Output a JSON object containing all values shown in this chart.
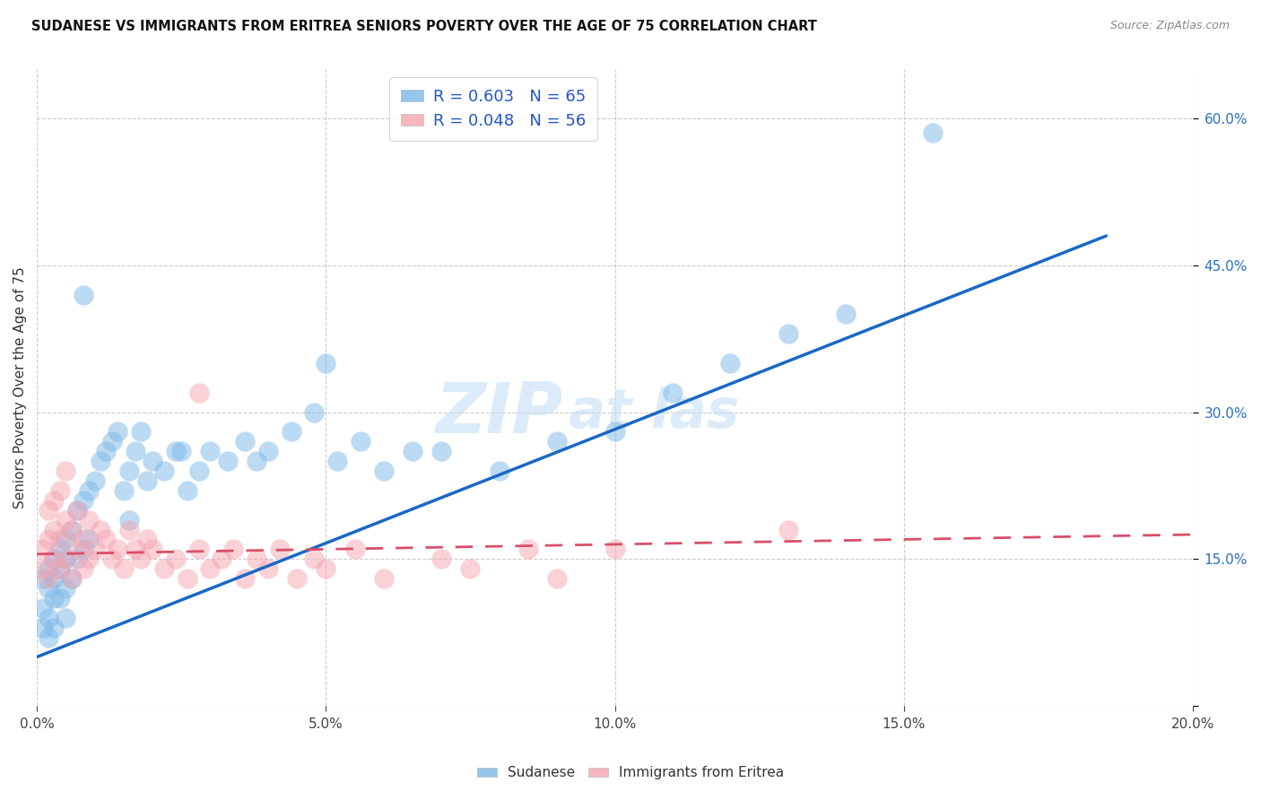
{
  "title": "SUDANESE VS IMMIGRANTS FROM ERITREA SENIORS POVERTY OVER THE AGE OF 75 CORRELATION CHART",
  "source": "Source: ZipAtlas.com",
  "ylabel": "Seniors Poverty Over the Age of 75",
  "xlim": [
    0.0,
    0.2
  ],
  "ylim": [
    0.0,
    0.65
  ],
  "xticks": [
    0.0,
    0.05,
    0.1,
    0.15,
    0.2
  ],
  "yticks": [
    0.0,
    0.15,
    0.3,
    0.45,
    0.6
  ],
  "legend1_R": "R = 0.603",
  "legend1_N": "N = 65",
  "legend2_R": "R = 0.048",
  "legend2_N": "N = 56",
  "legend_group1": "Sudanese",
  "legend_group2": "Immigrants from Eritrea",
  "color_blue": "#7bb8e8",
  "color_pink": "#f4a5b0",
  "line_blue": "#1a68c4",
  "line_pink": "#d94f6a",
  "background_color": "#ffffff",
  "grid_color": "#cccccc",
  "blue_line_x": [
    0.0,
    0.185
  ],
  "blue_line_y": [
    0.05,
    0.48
  ],
  "pink_line_x": [
    0.0,
    0.2
  ],
  "pink_line_y": [
    0.155,
    0.175
  ],
  "sudanese_x": [
    0.001,
    0.001,
    0.001,
    0.002,
    0.002,
    0.002,
    0.002,
    0.003,
    0.003,
    0.003,
    0.003,
    0.004,
    0.004,
    0.004,
    0.005,
    0.005,
    0.005,
    0.006,
    0.006,
    0.007,
    0.007,
    0.008,
    0.008,
    0.009,
    0.009,
    0.01,
    0.011,
    0.012,
    0.013,
    0.014,
    0.015,
    0.016,
    0.017,
    0.018,
    0.019,
    0.02,
    0.022,
    0.024,
    0.026,
    0.028,
    0.03,
    0.033,
    0.036,
    0.04,
    0.044,
    0.048,
    0.052,
    0.056,
    0.06,
    0.065,
    0.07,
    0.08,
    0.09,
    0.1,
    0.11,
    0.12,
    0.13,
    0.14,
    0.155,
    0.05,
    0.025,
    0.038,
    0.016,
    0.008,
    0.005
  ],
  "sudanese_y": [
    0.13,
    0.1,
    0.08,
    0.14,
    0.12,
    0.09,
    0.07,
    0.15,
    0.13,
    0.11,
    0.08,
    0.16,
    0.14,
    0.11,
    0.17,
    0.15,
    0.12,
    0.18,
    0.13,
    0.2,
    0.15,
    0.21,
    0.16,
    0.22,
    0.17,
    0.23,
    0.25,
    0.26,
    0.27,
    0.28,
    0.22,
    0.24,
    0.26,
    0.28,
    0.23,
    0.25,
    0.24,
    0.26,
    0.22,
    0.24,
    0.26,
    0.25,
    0.27,
    0.26,
    0.28,
    0.3,
    0.25,
    0.27,
    0.24,
    0.26,
    0.26,
    0.24,
    0.27,
    0.28,
    0.32,
    0.35,
    0.38,
    0.4,
    0.585,
    0.35,
    0.26,
    0.25,
    0.19,
    0.42,
    0.09
  ],
  "eritrea_x": [
    0.001,
    0.001,
    0.002,
    0.002,
    0.002,
    0.003,
    0.003,
    0.003,
    0.004,
    0.004,
    0.004,
    0.005,
    0.005,
    0.005,
    0.006,
    0.006,
    0.007,
    0.007,
    0.008,
    0.008,
    0.009,
    0.009,
    0.01,
    0.011,
    0.012,
    0.013,
    0.014,
    0.015,
    0.016,
    0.017,
    0.018,
    0.019,
    0.02,
    0.022,
    0.024,
    0.026,
    0.028,
    0.03,
    0.032,
    0.034,
    0.036,
    0.038,
    0.04,
    0.042,
    0.045,
    0.048,
    0.05,
    0.055,
    0.06,
    0.07,
    0.075,
    0.085,
    0.09,
    0.1,
    0.13,
    0.028
  ],
  "eritrea_y": [
    0.14,
    0.16,
    0.13,
    0.17,
    0.2,
    0.15,
    0.18,
    0.21,
    0.14,
    0.17,
    0.22,
    0.15,
    0.19,
    0.24,
    0.13,
    0.18,
    0.16,
    0.2,
    0.14,
    0.17,
    0.15,
    0.19,
    0.16,
    0.18,
    0.17,
    0.15,
    0.16,
    0.14,
    0.18,
    0.16,
    0.15,
    0.17,
    0.16,
    0.14,
    0.15,
    0.13,
    0.16,
    0.14,
    0.15,
    0.16,
    0.13,
    0.15,
    0.14,
    0.16,
    0.13,
    0.15,
    0.14,
    0.16,
    0.13,
    0.15,
    0.14,
    0.16,
    0.13,
    0.16,
    0.18,
    0.32
  ]
}
